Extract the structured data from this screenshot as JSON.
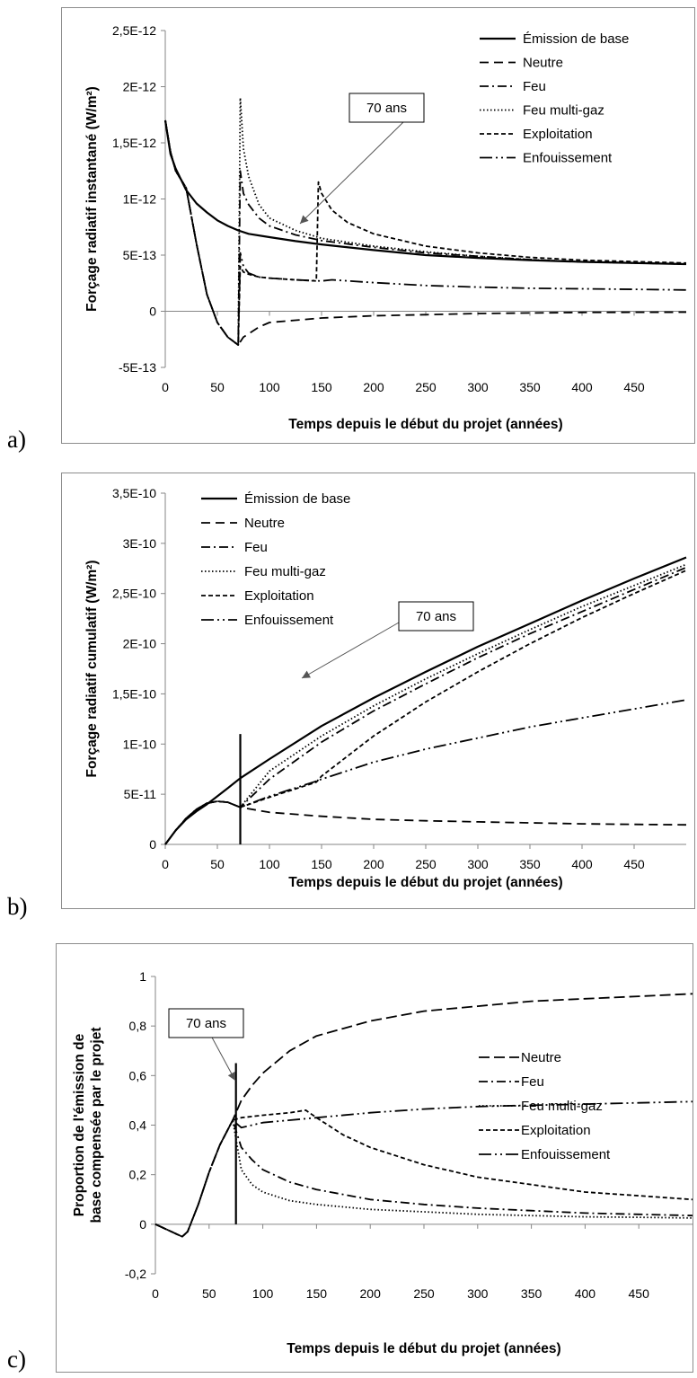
{
  "chart_data": [
    {
      "panel": "a)",
      "type": "line",
      "ylabel": "Forçage radiatif instantané  (W/m²)",
      "xlabel": "Temps depuis le début du projet (années)",
      "xlim": [
        0,
        500
      ],
      "ylim": [
        -5e-13,
        2.5e-12
      ],
      "xticks": [
        0,
        50,
        100,
        150,
        200,
        250,
        300,
        350,
        400,
        450
      ],
      "xtick_labels": [
        "0",
        "50",
        "100",
        "150",
        "200",
        "250",
        "300",
        "350",
        "400",
        "450"
      ],
      "yticks": [
        -5e-13,
        0,
        5e-13,
        1e-12,
        1.5e-12,
        2e-12,
        2.5e-12
      ],
      "ytick_labels": [
        "-5E-13",
        "0",
        "5E-13",
        "1E-12",
        "1,5E-12",
        "2E-12",
        "2,5E-12"
      ],
      "grid": false,
      "legend_position": "top-right",
      "annotation": {
        "text": "70 ans",
        "x": 70,
        "y": 7e-13
      },
      "series": [
        {
          "name": "Émission de base",
          "dash": "solid",
          "width": 2.2,
          "x": [
            0,
            5,
            10,
            20,
            30,
            40,
            50,
            60,
            70,
            80,
            100,
            125,
            150,
            200,
            250,
            300,
            350,
            400,
            500
          ],
          "y": [
            1.7e-12,
            1.4e-12,
            1.27e-12,
            1.08e-12,
            9.6e-13,
            8.8e-13,
            8.1e-13,
            7.6e-13,
            7.2e-13,
            6.9e-13,
            6.6e-13,
            6.25e-13,
            5.95e-13,
            5.45e-13,
            5e-13,
            4.75e-13,
            4.55e-13,
            4.4e-13,
            4.2e-13
          ]
        },
        {
          "name": "Neutre",
          "dash": "10,6",
          "width": 1.8,
          "x": [
            0,
            5,
            10,
            20,
            30,
            40,
            50,
            60,
            70,
            75,
            90,
            100,
            125,
            150,
            200,
            250,
            300,
            350,
            400,
            500
          ],
          "y": [
            1.7e-12,
            1.42e-12,
            1.25e-12,
            1.1e-12,
            6e-13,
            1.5e-13,
            -1e-13,
            -2.3e-13,
            -3e-13,
            -2.3e-13,
            -1.4e-13,
            -1e-13,
            -8e-14,
            -6e-14,
            -4e-14,
            -3e-14,
            -2e-14,
            -1.5e-14,
            -1e-14,
            -8e-15
          ]
        },
        {
          "name": "Feu",
          "dash": "10,4,2,4",
          "width": 1.8,
          "x": [
            0,
            5,
            10,
            20,
            30,
            40,
            50,
            60,
            70,
            72,
            75,
            80,
            90,
            100,
            125,
            150,
            200,
            250,
            300,
            350,
            400,
            500
          ],
          "y": [
            1.7e-12,
            1.42e-12,
            1.25e-12,
            1.1e-12,
            6e-13,
            1.5e-13,
            -1e-13,
            -2.3e-13,
            -3e-13,
            1.25e-12,
            1.05e-12,
            9.5e-13,
            8.3e-13,
            7.6e-13,
            6.8e-13,
            6.3e-13,
            5.7e-13,
            5.2e-13,
            4.9e-13,
            4.6e-13,
            4.4e-13,
            4.2e-13
          ]
        },
        {
          "name": "Feu multi-gaz",
          "dash": "1.5,2.5",
          "width": 1.8,
          "x": [
            0,
            5,
            10,
            20,
            30,
            40,
            50,
            60,
            70,
            72,
            75,
            80,
            90,
            100,
            125,
            150,
            200,
            250,
            300,
            350,
            400,
            500
          ],
          "y": [
            1.7e-12,
            1.42e-12,
            1.25e-12,
            1.1e-12,
            6e-13,
            1.5e-13,
            -1e-13,
            -2.3e-13,
            -3e-13,
            1.9e-12,
            1.45e-12,
            1.2e-12,
            9.5e-13,
            8.3e-13,
            7.2e-13,
            6.5e-13,
            5.8e-13,
            5.3e-13,
            4.9e-13,
            4.6e-13,
            4.4e-13,
            4.2e-13
          ]
        },
        {
          "name": "Exploitation",
          "dash": "5,3",
          "width": 1.8,
          "x": [
            0,
            5,
            10,
            20,
            30,
            40,
            50,
            60,
            70,
            72,
            75,
            80,
            90,
            100,
            125,
            145,
            147,
            150,
            160,
            175,
            200,
            250,
            300,
            350,
            400,
            500
          ],
          "y": [
            1.7e-12,
            1.42e-12,
            1.25e-12,
            1.1e-12,
            6e-13,
            1.5e-13,
            -1e-13,
            -2.3e-13,
            -3e-13,
            4e-13,
            3.5e-13,
            3.3e-13,
            3.05e-13,
            2.95e-13,
            2.8e-13,
            2.7e-13,
            1.15e-12,
            1.05e-12,
            9e-13,
            7.9e-13,
            6.9e-13,
            5.8e-13,
            5.2e-13,
            4.8e-13,
            4.55e-13,
            4.3e-13
          ]
        },
        {
          "name": "Enfouissement",
          "dash": "14,4,2,4,2,4",
          "width": 1.8,
          "x": [
            0,
            5,
            10,
            20,
            30,
            40,
            50,
            60,
            70,
            72,
            75,
            80,
            90,
            100,
            125,
            150,
            160,
            200,
            250,
            300,
            350,
            400,
            450,
            500
          ],
          "y": [
            1.7e-12,
            1.42e-12,
            1.25e-12,
            1.1e-12,
            6e-13,
            1.5e-13,
            -1e-13,
            -2.3e-13,
            -3e-13,
            5.2e-13,
            4e-13,
            3.4e-13,
            3.05e-13,
            2.95e-13,
            2.8e-13,
            2.7e-13,
            2.8e-13,
            2.55e-13,
            2.3e-13,
            2.15e-13,
            2.05e-13,
            2e-13,
            1.95e-13,
            1.9e-13
          ]
        }
      ]
    },
    {
      "panel": "b)",
      "type": "line",
      "ylabel": "Forçage radiatif cumulatif  (W/m²)",
      "xlabel": "Temps depuis le début du projet (années)",
      "xlim": [
        0,
        500
      ],
      "ylim": [
        0,
        3.5e-10
      ],
      "xticks": [
        0,
        50,
        100,
        150,
        200,
        250,
        300,
        350,
        400,
        450
      ],
      "xtick_labels": [
        "0",
        "50",
        "100",
        "150",
        "200",
        "250",
        "300",
        "350",
        "400",
        "450"
      ],
      "yticks": [
        0,
        5e-11,
        1e-10,
        1.5e-10,
        2e-10,
        2.5e-10,
        3e-10,
        3.5e-10
      ],
      "ytick_labels": [
        "0",
        "5E-11",
        "1E-10",
        "1,5E-10",
        "2E-10",
        "2,5E-10",
        "3E-10",
        "3,5E-10"
      ],
      "grid": false,
      "legend_position": "top-left",
      "marker_line": {
        "x": 72,
        "y": [
          0,
          1.1e-10
        ]
      },
      "annotation": {
        "text": "70 ans",
        "x": 72,
        "y": 3.5e-11
      },
      "series": [
        {
          "name": "Émission de base",
          "dash": "solid",
          "width": 2.2,
          "x": [
            0,
            10,
            20,
            30,
            40,
            50,
            60,
            72,
            100,
            150,
            200,
            250,
            300,
            350,
            400,
            450,
            500
          ],
          "y": [
            0,
            1.4e-11,
            2.5e-11,
            3.3e-11,
            4e-11,
            4.8e-11,
            5.6e-11,
            6.6e-11,
            8.5e-11,
            1.18e-10,
            1.46e-10,
            1.72e-10,
            1.97e-10,
            2.2e-10,
            2.43e-10,
            2.65e-10,
            2.86e-10
          ]
        },
        {
          "name": "Neutre",
          "dash": "10,6",
          "width": 1.8,
          "x": [
            0,
            10,
            20,
            30,
            40,
            50,
            60,
            72,
            100,
            150,
            200,
            250,
            300,
            350,
            400,
            450,
            500
          ],
          "y": [
            0,
            1.4e-11,
            2.6e-11,
            3.5e-11,
            4.1e-11,
            4.3e-11,
            4.2e-11,
            3.7e-11,
            3.2e-11,
            2.8e-11,
            2.5e-11,
            2.35e-11,
            2.25e-11,
            2.15e-11,
            2.05e-11,
            2e-11,
            1.95e-11
          ]
        },
        {
          "name": "Feu",
          "dash": "10,4,2,4",
          "width": 1.8,
          "x": [
            0,
            10,
            20,
            30,
            40,
            50,
            60,
            72,
            100,
            150,
            200,
            250,
            300,
            350,
            400,
            450,
            500
          ],
          "y": [
            0,
            1.4e-11,
            2.6e-11,
            3.5e-11,
            4.1e-11,
            4.3e-11,
            4.2e-11,
            3.7e-11,
            6.5e-11,
            1.02e-10,
            1.33e-10,
            1.6e-10,
            1.86e-10,
            2.1e-10,
            2.32e-10,
            2.54e-10,
            2.76e-10
          ]
        },
        {
          "name": "Feu multi-gaz",
          "dash": "1.5,2.5",
          "width": 1.8,
          "x": [
            0,
            10,
            20,
            30,
            40,
            50,
            60,
            72,
            100,
            150,
            200,
            250,
            300,
            350,
            400,
            450,
            500
          ],
          "y": [
            0,
            1.4e-11,
            2.6e-11,
            3.5e-11,
            4.1e-11,
            4.3e-11,
            4.2e-11,
            3.7e-11,
            7.3e-11,
            1.08e-10,
            1.38e-10,
            1.65e-10,
            1.9e-10,
            2.14e-10,
            2.37e-10,
            2.58e-10,
            2.79e-10
          ]
        },
        {
          "name": "Exploitation",
          "dash": "5,3",
          "width": 1.8,
          "x": [
            0,
            10,
            20,
            30,
            40,
            50,
            60,
            72,
            100,
            145,
            150,
            200,
            250,
            300,
            350,
            400,
            450,
            500
          ],
          "y": [
            0,
            1.4e-11,
            2.6e-11,
            3.5e-11,
            4.1e-11,
            4.3e-11,
            4.2e-11,
            3.7e-11,
            4.7e-11,
            6.2e-11,
            6.8e-11,
            1.08e-10,
            1.42e-10,
            1.72e-10,
            2e-10,
            2.26e-10,
            2.5e-10,
            2.73e-10
          ]
        },
        {
          "name": "Enfouissement",
          "dash": "14,4,2,4,2,4",
          "width": 1.8,
          "x": [
            0,
            10,
            20,
            30,
            40,
            50,
            60,
            72,
            100,
            145,
            150,
            200,
            250,
            300,
            350,
            400,
            450,
            500
          ],
          "y": [
            0,
            1.4e-11,
            2.6e-11,
            3.5e-11,
            4.1e-11,
            4.3e-11,
            4.2e-11,
            3.7e-11,
            4.8e-11,
            6.3e-11,
            6.5e-11,
            8.2e-11,
            9.5e-11,
            1.06e-10,
            1.17e-10,
            1.26e-10,
            1.35e-10,
            1.44e-10
          ]
        }
      ]
    },
    {
      "panel": "c)",
      "type": "line",
      "ylabel": "Proportion de l'émission de base compensée par le projet",
      "xlabel": "Temps depuis le début du projet (années)",
      "xlim": [
        0,
        500
      ],
      "ylim": [
        -0.2,
        1
      ],
      "xticks": [
        0,
        50,
        100,
        150,
        200,
        250,
        300,
        350,
        400,
        450
      ],
      "xtick_labels": [
        "0",
        "50",
        "100",
        "150",
        "200",
        "250",
        "300",
        "350",
        "400",
        "450"
      ],
      "yticks": [
        -0.2,
        0,
        0.2,
        0.4,
        0.6,
        0.8,
        1
      ],
      "ytick_labels": [
        "-0,2",
        "0",
        "0,2",
        "0,4",
        "0,6",
        "0,8",
        "1"
      ],
      "grid": false,
      "legend_position": "right",
      "marker_line": {
        "x": 75,
        "y": [
          0,
          0.65
        ]
      },
      "annotation": {
        "text": "70 ans",
        "x": 75,
        "y": 0.6
      },
      "series": [
        {
          "name": "Neutre",
          "dash": "12,5",
          "width": 1.8,
          "x": [
            0,
            10,
            20,
            25,
            30,
            40,
            50,
            60,
            72,
            80,
            90,
            100,
            125,
            150,
            200,
            250,
            300,
            350,
            400,
            450,
            500
          ],
          "y": [
            0,
            -0.02,
            -0.04,
            -0.05,
            -0.03,
            0.08,
            0.21,
            0.32,
            0.42,
            0.5,
            0.56,
            0.61,
            0.7,
            0.76,
            0.82,
            0.86,
            0.88,
            0.9,
            0.91,
            0.92,
            0.93
          ]
        },
        {
          "name": "Feu",
          "dash": "10,4,2,4",
          "width": 1.8,
          "x": [
            0,
            10,
            20,
            25,
            30,
            40,
            50,
            60,
            72,
            80,
            90,
            100,
            125,
            150,
            200,
            250,
            300,
            350,
            400,
            450,
            500
          ],
          "y": [
            0,
            -0.02,
            -0.04,
            -0.05,
            -0.03,
            0.08,
            0.21,
            0.32,
            0.42,
            0.31,
            0.26,
            0.22,
            0.17,
            0.14,
            0.1,
            0.08,
            0.065,
            0.055,
            0.045,
            0.04,
            0.035
          ]
        },
        {
          "name": "Feu multi-gaz",
          "dash": "1.5,2.5",
          "width": 1.8,
          "x": [
            0,
            10,
            20,
            25,
            30,
            40,
            50,
            60,
            72,
            80,
            90,
            100,
            125,
            150,
            200,
            250,
            300,
            350,
            400,
            450,
            500
          ],
          "y": [
            0,
            -0.02,
            -0.04,
            -0.05,
            -0.03,
            0.08,
            0.21,
            0.32,
            0.42,
            0.22,
            0.16,
            0.13,
            0.095,
            0.08,
            0.06,
            0.05,
            0.04,
            0.035,
            0.03,
            0.028,
            0.025
          ]
        },
        {
          "name": "Exploitation",
          "dash": "5,3",
          "width": 1.8,
          "x": [
            0,
            10,
            20,
            25,
            30,
            40,
            50,
            60,
            72,
            80,
            100,
            125,
            140,
            150,
            175,
            200,
            250,
            300,
            350,
            400,
            450,
            500
          ],
          "y": [
            0,
            -0.02,
            -0.04,
            -0.05,
            -0.03,
            0.08,
            0.21,
            0.32,
            0.42,
            0.43,
            0.44,
            0.45,
            0.46,
            0.43,
            0.36,
            0.31,
            0.24,
            0.19,
            0.16,
            0.13,
            0.115,
            0.1
          ]
        },
        {
          "name": "Enfouissement",
          "dash": "14,4,2,4,2,4",
          "width": 1.8,
          "x": [
            0,
            10,
            20,
            25,
            30,
            40,
            50,
            60,
            72,
            80,
            100,
            125,
            150,
            200,
            250,
            300,
            350,
            400,
            450,
            500
          ],
          "y": [
            0,
            -0.02,
            -0.04,
            -0.05,
            -0.03,
            0.08,
            0.21,
            0.32,
            0.42,
            0.39,
            0.41,
            0.42,
            0.43,
            0.45,
            0.465,
            0.475,
            0.48,
            0.485,
            0.49,
            0.495
          ]
        }
      ]
    }
  ]
}
